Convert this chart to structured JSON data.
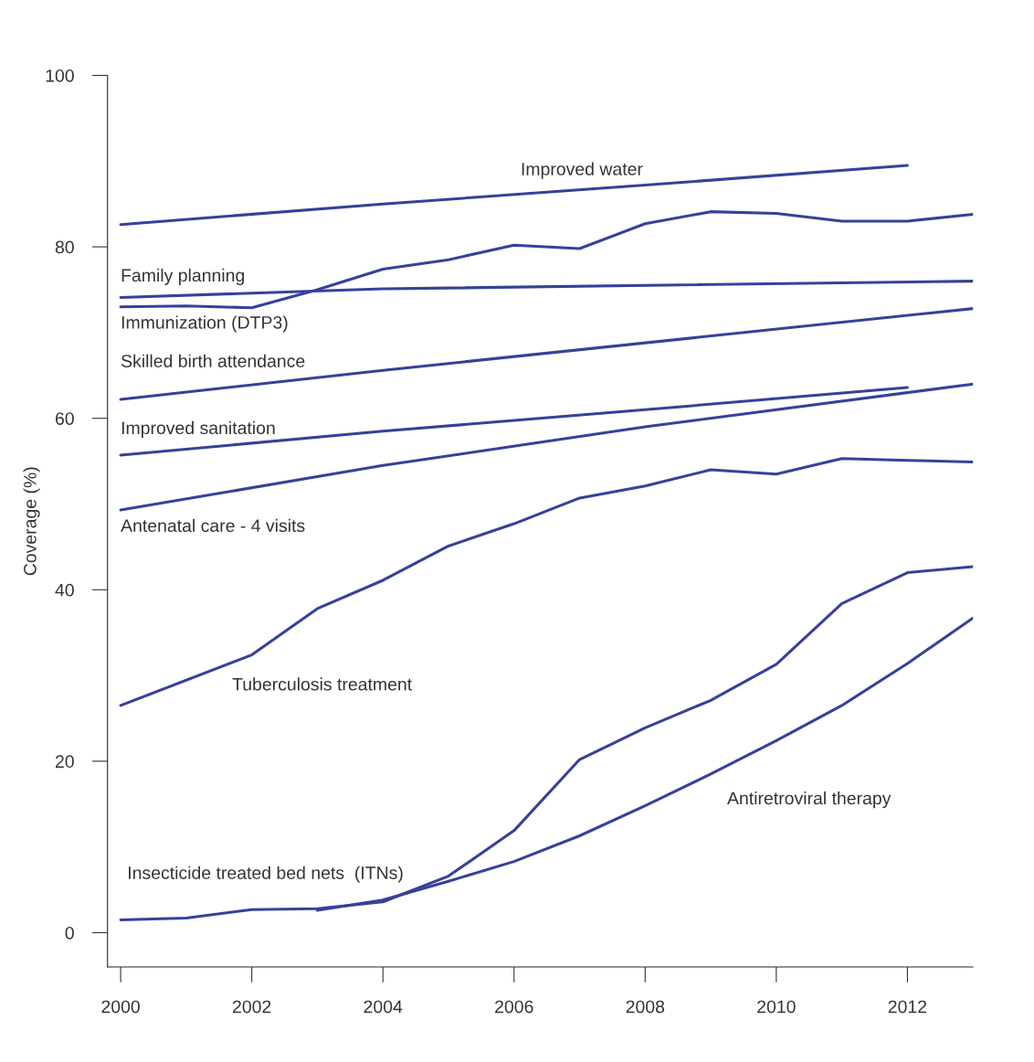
{
  "chart_data": {
    "type": "line",
    "ylabel": "Coverage (%)",
    "xlim": [
      1999.8,
      2013
    ],
    "ylim": [
      -4,
      100
    ],
    "xticks": [
      2000,
      2002,
      2004,
      2006,
      2008,
      2010,
      2012
    ],
    "yticks": [
      0,
      20,
      40,
      60,
      80,
      100
    ],
    "grid": false,
    "legend": false,
    "marker": "none",
    "line_style": "solid",
    "series": [
      {
        "name": "Improved water",
        "color": "#36419b",
        "x": [
          2000,
          2004,
          2008,
          2012
        ],
        "values": [
          82.6,
          85.0,
          87.2,
          89.5
        ]
      },
      {
        "name": "Family planning",
        "color": "#36419b",
        "x": [
          2000,
          2004,
          2013
        ],
        "values": [
          74.1,
          75.1,
          76.0
        ]
      },
      {
        "name": "Immunization (DTP3)",
        "color": "#36419b",
        "x": [
          2000,
          2001,
          2002,
          2003,
          2004,
          2005,
          2006,
          2007,
          2008,
          2009,
          2010,
          2011,
          2012,
          2013
        ],
        "values": [
          73.0,
          73.1,
          72.9,
          75.0,
          77.4,
          78.5,
          80.2,
          79.8,
          82.7,
          84.1,
          83.9,
          83.0,
          83.0,
          83.8
        ]
      },
      {
        "name": "Skilled birth attendance",
        "color": "#36419b",
        "x": [
          2000,
          2004,
          2013
        ],
        "values": [
          62.2,
          65.6,
          72.8
        ]
      },
      {
        "name": "Improved sanitation",
        "color": "#36419b",
        "x": [
          2000,
          2004,
          2008,
          2012
        ],
        "values": [
          55.7,
          58.5,
          61.0,
          63.6
        ]
      },
      {
        "name": "Antenatal care - 4 visits",
        "color": "#36419b",
        "x": [
          2000,
          2004,
          2008,
          2013
        ],
        "values": [
          49.3,
          54.5,
          59.0,
          64.0
        ]
      },
      {
        "name": "Tuberculosis treatment",
        "color": "#36419b",
        "x": [
          2000,
          2002,
          2003,
          2004,
          2005,
          2006,
          2007,
          2008,
          2009,
          2010,
          2011,
          2012,
          2013
        ],
        "values": [
          26.5,
          32.4,
          37.8,
          41.1,
          45.1,
          47.7,
          50.7,
          52.1,
          54.0,
          53.5,
          55.3,
          55.1,
          54.9
        ]
      },
      {
        "name": "Insecticide treated bed nets  (ITNs)",
        "color": "#36419b",
        "x": [
          2000,
          2001,
          2002,
          2003,
          2004,
          2005,
          2006,
          2007,
          2008,
          2009,
          2010,
          2011,
          2012,
          2013
        ],
        "values": [
          1.5,
          1.7,
          2.7,
          2.8,
          3.6,
          6.6,
          11.9,
          20.2,
          23.9,
          27.1,
          31.3,
          38.4,
          42.0,
          42.7
        ]
      },
      {
        "name": "Antiretroviral therapy",
        "color": "#36419b",
        "x": [
          2003,
          2004,
          2005,
          2006,
          2007,
          2008,
          2009,
          2010,
          2011,
          2012,
          2013
        ],
        "values": [
          2.6,
          3.8,
          6.0,
          8.3,
          11.3,
          14.8,
          18.5,
          22.4,
          26.5,
          31.4,
          36.7
        ]
      }
    ]
  }
}
